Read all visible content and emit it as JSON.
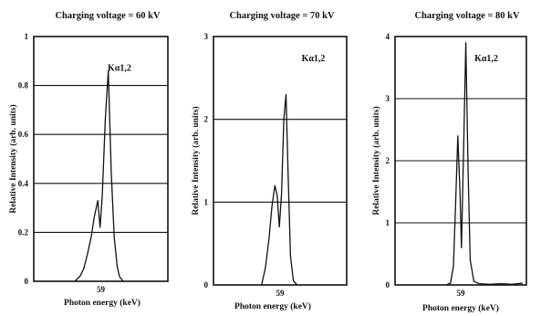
{
  "chart_data": [
    {
      "type": "line",
      "title": "Charging voltage = 60 kV",
      "xlabel": "Photon energy (keV)",
      "ylabel": "Relative Intensity (arb. units)",
      "ylim": [
        0,
        1
      ],
      "yticks": [
        0,
        0.2,
        0.4,
        0.6,
        0.8,
        1
      ],
      "ytick_labels": [
        "0",
        "0.2",
        "0.4",
        "0.6",
        "0.8",
        "1"
      ],
      "xlim": [
        50,
        68
      ],
      "xticks": [
        59
      ],
      "xtick_labels": [
        "59"
      ],
      "grid": true,
      "annotation": {
        "text": "Kα1,2",
        "x": 61.5,
        "y": 0.86
      },
      "series": [
        {
          "x": [
            55.5,
            56.2,
            56.7,
            57.2,
            57.7,
            58.1,
            58.6,
            58.9,
            59.2,
            59.6,
            60.0,
            60.4,
            60.8,
            61.2,
            61.5,
            62.0
          ],
          "y": [
            0,
            0.02,
            0.05,
            0.11,
            0.18,
            0.26,
            0.33,
            0.22,
            0.35,
            0.66,
            0.86,
            0.45,
            0.18,
            0.06,
            0.02,
            0
          ]
        }
      ]
    },
    {
      "type": "line",
      "title": "Charging voltage = 70 kV",
      "xlabel": "Photon energy (keV)",
      "ylabel": "Relative Intensity (arb. units)",
      "ylim": [
        0,
        3
      ],
      "yticks": [
        0,
        1,
        2,
        3
      ],
      "ytick_labels": [
        "0",
        "1",
        "2",
        "3"
      ],
      "xlim": [
        50,
        68
      ],
      "xticks": [
        59
      ],
      "xtick_labels": [
        "59"
      ],
      "grid": true,
      "annotation": {
        "text": "Kα1,2",
        "x": 63.5,
        "y": 2.7
      },
      "series": [
        {
          "x": [
            56.5,
            57.0,
            57.5,
            57.9,
            58.3,
            58.6,
            58.9,
            59.2,
            59.5,
            59.8,
            60.1,
            60.4,
            60.8,
            61.3
          ],
          "y": [
            0,
            0.2,
            0.55,
            0.95,
            1.2,
            1.08,
            0.7,
            1.1,
            2.0,
            2.3,
            1.3,
            0.35,
            0.05,
            0
          ]
        }
      ]
    },
    {
      "type": "line",
      "title": "Charging voltage = 80 kV",
      "xlabel": "Photon energy (keV)",
      "ylabel": "Relative Intensity (arb. units)",
      "ylim": [
        0,
        4
      ],
      "yticks": [
        0,
        1,
        2,
        3,
        4
      ],
      "ytick_labels": [
        "0",
        "1",
        "2",
        "3",
        "4"
      ],
      "xlim": [
        50,
        68
      ],
      "xticks": [
        59
      ],
      "xtick_labels": [
        "59"
      ],
      "grid": true,
      "annotation": {
        "text": "Kα1,2",
        "x": 62.5,
        "y": 3.6
      },
      "series": [
        {
          "x": [
            57.0,
            57.6,
            58.0,
            58.3,
            58.6,
            58.9,
            59.1,
            59.4,
            59.7,
            60.0,
            60.3,
            60.8,
            61.5,
            63.0,
            64.5,
            66.0,
            67.5
          ],
          "y": [
            0,
            0.03,
            0.3,
            1.3,
            2.4,
            1.5,
            0.6,
            2.2,
            3.9,
            1.9,
            0.4,
            0.06,
            0.02,
            0.01,
            0.02,
            0.01,
            0.03
          ]
        }
      ]
    }
  ]
}
